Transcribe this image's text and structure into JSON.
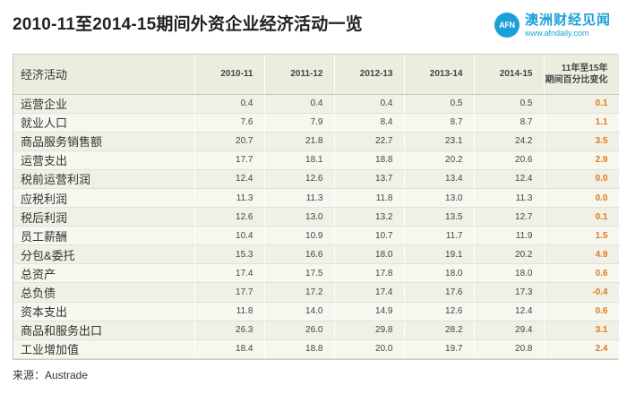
{
  "title": "2010-11至2014-15期间外资企业经济活动一览",
  "brand": {
    "logo_text": "AFN",
    "name": "澳洲财经见闻",
    "url": "www.afndaily.com"
  },
  "table": {
    "header": {
      "label": "经济活动",
      "years": [
        "2010-11",
        "2011-12",
        "2012-13",
        "2013-14",
        "2014-15"
      ],
      "change": [
        "11年至15年",
        "期间百分比变化"
      ]
    },
    "rows": [
      {
        "label": "运营企业",
        "values": [
          "0.4",
          "0.4",
          "0.4",
          "0.5",
          "0.5"
        ],
        "change": "0.1"
      },
      {
        "label": "就业人口",
        "values": [
          "7.6",
          "7.9",
          "8.4",
          "8.7",
          "8.7"
        ],
        "change": "1.1"
      },
      {
        "label": "商品服务销售额",
        "values": [
          "20.7",
          "21.8",
          "22.7",
          "23.1",
          "24.2"
        ],
        "change": "3.5"
      },
      {
        "label": "运营支出",
        "values": [
          "17.7",
          "18.1",
          "18.8",
          "20.2",
          "20.6"
        ],
        "change": "2.9"
      },
      {
        "label": "税前运营利润",
        "values": [
          "12.4",
          "12.6",
          "13.7",
          "13.4",
          "12.4"
        ],
        "change": "0.0"
      },
      {
        "label": "应税利润",
        "values": [
          "11.3",
          "11.3",
          "11.8",
          "13.0",
          "11.3"
        ],
        "change": "0.0"
      },
      {
        "label": "税后利润",
        "values": [
          "12.6",
          "13.0",
          "13.2",
          "13.5",
          "12.7"
        ],
        "change": "0.1"
      },
      {
        "label": "员工薪酬",
        "values": [
          "10.4",
          "10.9",
          "10.7",
          "11.7",
          "11.9"
        ],
        "change": "1.5"
      },
      {
        "label": "分包&委托",
        "values": [
          "15.3",
          "16.6",
          "18.0",
          "19.1",
          "20.2"
        ],
        "change": "4.9"
      },
      {
        "label": "总资产",
        "values": [
          "17.4",
          "17.5",
          "17.8",
          "18.0",
          "18.0"
        ],
        "change": "0.6"
      },
      {
        "label": "总负债",
        "values": [
          "17.7",
          "17.2",
          "17.4",
          "17.6",
          "17.3"
        ],
        "change": "-0.4"
      },
      {
        "label": "资本支出",
        "values": [
          "11.8",
          "14.0",
          "14.9",
          "12.6",
          "12.4"
        ],
        "change": "0.6"
      },
      {
        "label": "商品和服务出口",
        "values": [
          "26.3",
          "26.0",
          "29.8",
          "28.2",
          "29.4"
        ],
        "change": "3.1"
      },
      {
        "label": "工业增加值",
        "values": [
          "18.4",
          "18.8",
          "20.0",
          "19.7",
          "20.8"
        ],
        "change": "2.4"
      }
    ]
  },
  "source": "来源：Austrade",
  "colors": {
    "header_bg": "#ececdf",
    "row_odd": "#f0f0e6",
    "row_even": "#f7f7f0",
    "change_text": "#e07a1c",
    "brand": "#1aa0d8"
  }
}
